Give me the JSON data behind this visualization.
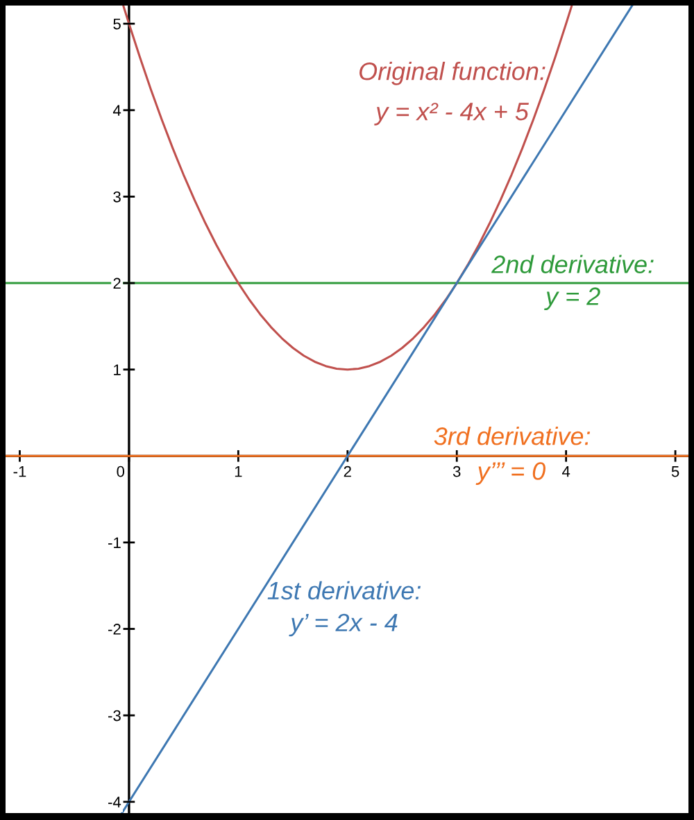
{
  "chart_data": {
    "type": "line",
    "xlim": [
      -1.13,
      5.12
    ],
    "ylim": [
      -4.13,
      5.21
    ],
    "xticks": [
      -1,
      0,
      1,
      2,
      3,
      4,
      5
    ],
    "yticks": [
      -4,
      -3,
      -2,
      -1,
      1,
      2,
      3,
      4,
      5
    ],
    "series": [
      {
        "name": "Original function:\ny = x² - 4x + 5",
        "color": "#c0504d",
        "x": [
          -0.05,
          0,
          0.1,
          0.2,
          0.3,
          0.4,
          0.5,
          0.6,
          0.7,
          0.8,
          0.9,
          1,
          1.1,
          1.2,
          1.3,
          1.4,
          1.5,
          1.6,
          1.7,
          1.8,
          1.9,
          2,
          2.1,
          2.2,
          2.3,
          2.4,
          2.5,
          2.6,
          2.7,
          2.8,
          2.9,
          3,
          3.1,
          3.2,
          3.3,
          3.4,
          3.5,
          3.6,
          3.7,
          3.8,
          3.9,
          4,
          4.05
        ],
        "values": [
          5.2,
          5,
          4.61,
          4.24,
          3.89,
          3.56,
          3.25,
          2.96,
          2.69,
          2.44,
          2.21,
          2,
          1.81,
          1.64,
          1.49,
          1.36,
          1.25,
          1.16,
          1.09,
          1.04,
          1.01,
          1,
          1.01,
          1.04,
          1.09,
          1.16,
          1.25,
          1.36,
          1.49,
          1.64,
          1.81,
          2,
          2.21,
          2.44,
          2.69,
          2.96,
          3.25,
          3.56,
          3.89,
          4.24,
          4.61,
          5,
          5.2
        ]
      },
      {
        "name": "1st derivative:\ny’ = 2x - 4",
        "color": "#3e78b2",
        "x": [
          -0.065,
          0,
          1,
          2,
          3,
          4,
          4.605
        ],
        "values": [
          -4.13,
          -4,
          -2,
          0,
          2,
          4,
          5.21
        ]
      }
    ],
    "ref_lines": [
      {
        "axis": "y",
        "value": 2,
        "label": "2nd derivative:\ny = 2",
        "color": "#2e9a3a"
      },
      {
        "axis": "y",
        "value": 0,
        "label": "3rd derivative:",
        "color": "#f07020"
      }
    ],
    "annotations": [
      {
        "text": "y’’’ = 0",
        "x": 3.5,
        "y": 0
      }
    ]
  }
}
